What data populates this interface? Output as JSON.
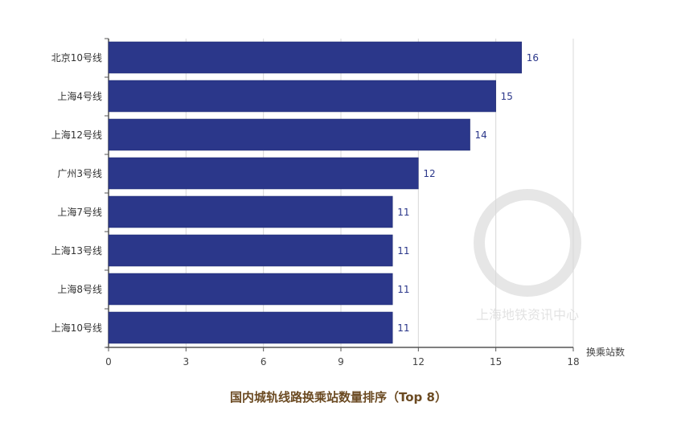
{
  "chart_data": {
    "type": "bar",
    "orientation": "horizontal",
    "title": "国内城轨线路换乘站数量排序（Top 8）",
    "xlabel": "换乘站数",
    "ylabel": "",
    "categories": [
      "北京10号线",
      "上海4号线",
      "上海12号线",
      "广州3号线",
      "上海7号线",
      "上海13号线",
      "上海8号线",
      "上海10号线"
    ],
    "values": [
      16,
      15,
      14,
      12,
      11,
      11,
      11,
      11
    ],
    "xlim": [
      0,
      18
    ],
    "xticks": [
      0,
      3,
      6,
      9,
      12,
      15,
      18
    ],
    "grid": "vertical",
    "data_labels": true,
    "colors": {
      "bar": "#2b378a",
      "label": "#2b378a",
      "title": "#6b4a22",
      "axis": "#555555",
      "grid": "#d8d8d8"
    },
    "watermark": "上海地铁资讯中心"
  }
}
